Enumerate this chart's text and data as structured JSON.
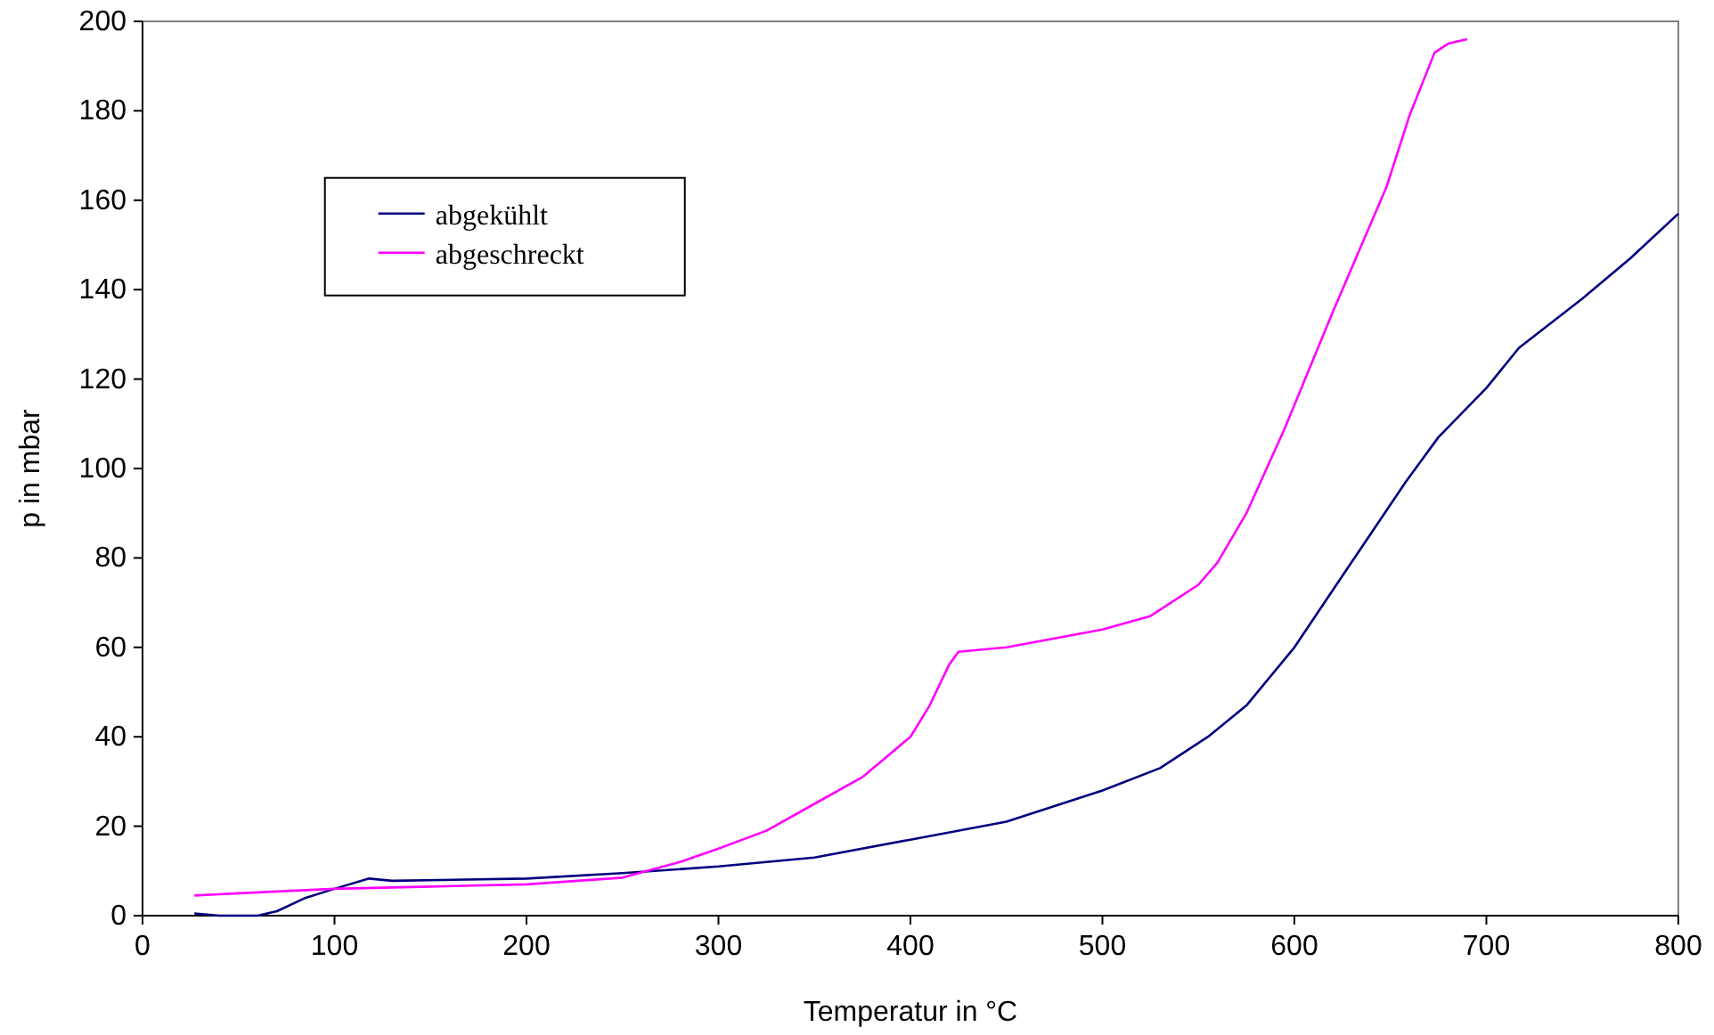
{
  "chart_data": {
    "type": "line",
    "xlabel": "Temperatur in °C",
    "ylabel": "p in mbar",
    "xlim": [
      0,
      800
    ],
    "ylim": [
      0,
      200
    ],
    "xticks": [
      0,
      100,
      200,
      300,
      400,
      500,
      600,
      700,
      800
    ],
    "yticks": [
      0,
      20,
      40,
      60,
      80,
      100,
      120,
      140,
      160,
      180,
      200
    ],
    "grid": false,
    "legend": "top left",
    "marker": "none",
    "line_style": "solid",
    "series": [
      {
        "name": "abgekühlt",
        "color": "#000080",
        "x": [
          27,
          40,
          60,
          70,
          85,
          100,
          118,
          130,
          200,
          250,
          300,
          350,
          400,
          450,
          500,
          530,
          555,
          575,
          600,
          625,
          658,
          675,
          700,
          717,
          750,
          775,
          800
        ],
        "values": [
          0.5,
          0,
          0,
          1,
          4,
          6,
          8.3,
          7.8,
          8.3,
          9.5,
          11,
          13,
          17,
          21,
          28,
          33,
          40,
          47,
          60,
          76,
          97,
          107,
          118,
          127,
          138,
          147,
          157
        ]
      },
      {
        "name": "abgeschreckt",
        "color": "#ff00ff",
        "x": [
          27,
          50,
          100,
          150,
          200,
          250,
          280,
          300,
          325,
          350,
          375,
          400,
          410,
          420,
          425,
          450,
          500,
          525,
          550,
          560,
          575,
          595,
          620,
          648,
          660,
          673,
          680,
          690
        ],
        "values": [
          4.5,
          5,
          6,
          6.5,
          7,
          8.5,
          12,
          15,
          19,
          25,
          31,
          40,
          47,
          56,
          59,
          60,
          64,
          67,
          74,
          79,
          90,
          109,
          135,
          163,
          179,
          193,
          195,
          196
        ]
      }
    ]
  }
}
